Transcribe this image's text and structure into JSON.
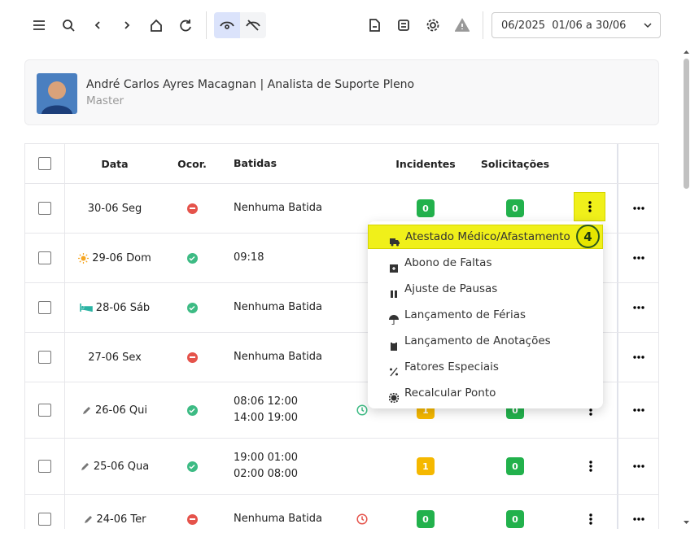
{
  "toolbar": {
    "period": "06/2025  01/06 a 30/06"
  },
  "user": {
    "name": "André Carlos Ayres Macagnan | Analista de Suporte Pleno",
    "role": "Master"
  },
  "table": {
    "headers": [
      "Data",
      "Ocor.",
      "Batidas",
      "Incidentes",
      "Solicitações"
    ],
    "rows": [
      {
        "data": "30-06 Seg",
        "icon": null,
        "status_color": "#e5534b",
        "batidas": "Nenhuma Batida",
        "clock_color": null,
        "incidentes": 0,
        "incidentes_color": "#22b14c",
        "solicitacoes": 0,
        "solicitacoes_color": "#22b14c"
      },
      {
        "data": "29-06 Dom",
        "icon": "sun",
        "status_color": "#3dbb84",
        "batidas": "09:18",
        "clock_color": null,
        "incidentes": null,
        "incidentes_color": null,
        "solicitacoes": null,
        "solicitacoes_color": null
      },
      {
        "data": "28-06 Sáb",
        "icon": "bed",
        "status_color": "#3dbb84",
        "batidas": "Nenhuma Batida",
        "clock_color": null,
        "incidentes": null,
        "incidentes_color": null,
        "solicitacoes": null,
        "solicitacoes_color": null
      },
      {
        "data": "27-06 Sex",
        "icon": null,
        "status_color": "#e5534b",
        "batidas": "Nenhuma Batida",
        "clock_color": null,
        "incidentes": null,
        "incidentes_color": null,
        "solicitacoes": null,
        "solicitacoes_color": null
      },
      {
        "data": "26-06 Qui",
        "icon": "pencil",
        "status_color": "#3dbb84",
        "batidas": "08:06 12:00 14:00 19:00",
        "clock_color": "#3dbb84",
        "incidentes": 1,
        "incidentes_color": "#f5b800",
        "solicitacoes": 0,
        "solicitacoes_color": "#22b14c"
      },
      {
        "data": "25-06 Qua",
        "icon": "pencil",
        "status_color": "#3dbb84",
        "batidas": "19:00 01:00 02:00 08:00",
        "clock_color": null,
        "incidentes": 1,
        "incidentes_color": "#f5b800",
        "solicitacoes": 0,
        "solicitacoes_color": "#22b14c"
      },
      {
        "data": "24-06 Ter",
        "icon": "pencil",
        "status_color": "#e5534b",
        "batidas": "Nenhuma Batida",
        "clock_color": "#e5534b",
        "incidentes": 0,
        "incidentes_color": "#22b14c",
        "solicitacoes": 0,
        "solicitacoes_color": "#22b14c"
      }
    ]
  },
  "menu": {
    "items": [
      "Atestado Médico/Afastamento",
      "Abono de Faltas",
      "Ajuste de Pausas",
      "Lançamento de Férias",
      "Lançamento de Anotações",
      "Fatores Especiais",
      "Recalcular Ponto"
    ],
    "step_badge": 4
  }
}
